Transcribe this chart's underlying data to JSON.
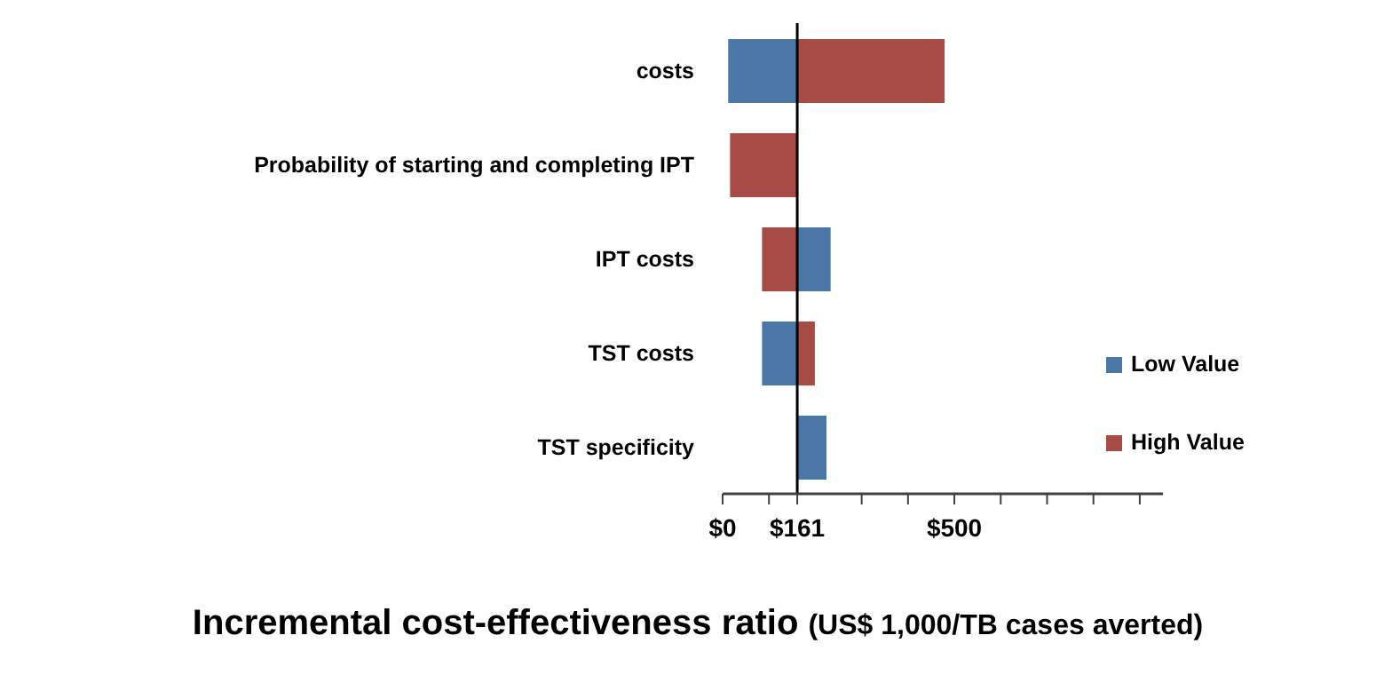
{
  "chart_data": {
    "type": "bar",
    "orientation": "horizontal",
    "xlabel": "Incremental cost-effectiveness ratio (US$ 1,000/TB cases averted)",
    "categories": [
      "costs",
      "Probability of starting and completing IPT",
      "IPT costs",
      "TST costs",
      "TST specificity"
    ],
    "series": [
      {
        "name": "Low Value",
        "color": "#4a76a8",
        "base": [
          161,
          null,
          161,
          161,
          161
        ],
        "values": [
          -149,
          null,
          72,
          -76,
          63
        ]
      },
      {
        "name": "High Value",
        "color": "#a84a45",
        "base": [
          161,
          161,
          161,
          161,
          null
        ],
        "values": [
          318,
          -145,
          -76,
          38,
          null
        ]
      }
    ],
    "xlim": [
      0,
      950
    ],
    "xticks": [
      {
        "value": 0,
        "label": "$0"
      },
      {
        "value": 100,
        "label": null
      },
      {
        "value": 161,
        "label": "$161"
      },
      {
        "value": 300,
        "label": null
      },
      {
        "value": 400,
        "label": null
      },
      {
        "value": 500,
        "label": "$500"
      },
      {
        "value": 600,
        "label": null
      },
      {
        "value": 700,
        "label": null
      },
      {
        "value": 800,
        "label": null
      },
      {
        "value": 900,
        "label": null
      }
    ],
    "ref_lines": [
      {
        "axis": "x",
        "value": 161,
        "color": "#000000"
      }
    ],
    "legend": "right",
    "grid": false
  }
}
